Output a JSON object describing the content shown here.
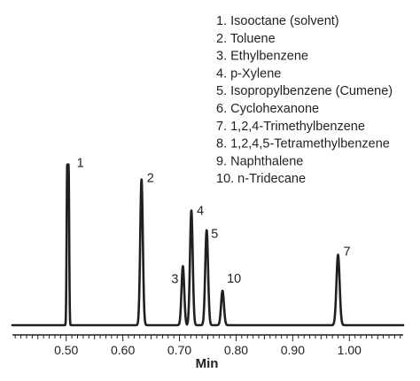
{
  "chart_data": {
    "type": "line",
    "xlabel": "Min",
    "xlim": [
      0.405,
      1.095
    ],
    "ylim": [
      0,
      1
    ],
    "x_ticks": [
      "0.50",
      "0.60",
      "0.70",
      "0.80",
      "0.90",
      "1.00"
    ],
    "x_tick_values": [
      0.5,
      0.6,
      0.7,
      0.8,
      0.9,
      1.0
    ],
    "grid": false,
    "legend": [
      "1. Isooctane (solvent)",
      "2. Toluene",
      "3. Ethylbenzene",
      "4. p-Xylene",
      "5. Isopropylbenzene (Cumene)",
      "6. Cyclohexanone",
      "7. 1,2,4-Trimethylbenzene",
      "8. 1,2,4,5-Tetramethylbenzene",
      "9. Naphthalene",
      "10. n-Tridecane"
    ],
    "legend_position": "top-right",
    "line_color": "#231f20",
    "peaks": [
      {
        "label": "1",
        "retention_time": 0.503,
        "height": 0.98,
        "width": 0.0055,
        "flat_top": true,
        "top_width": 0.0025
      },
      {
        "label": "2",
        "retention_time": 0.633,
        "height": 0.89,
        "width": 0.0023
      },
      {
        "label": "3",
        "retention_time": 0.706,
        "height": 0.36,
        "width": 0.0024
      },
      {
        "label": "4",
        "retention_time": 0.721,
        "height": 0.7,
        "width": 0.0024
      },
      {
        "label": "5",
        "retention_time": 0.748,
        "height": 0.58,
        "width": 0.0025
      },
      {
        "label": "10",
        "retention_time": 0.776,
        "height": 0.21,
        "width": 0.0025
      },
      {
        "label": "7",
        "retention_time": 0.98,
        "height": 0.43,
        "width": 0.0028
      }
    ]
  }
}
